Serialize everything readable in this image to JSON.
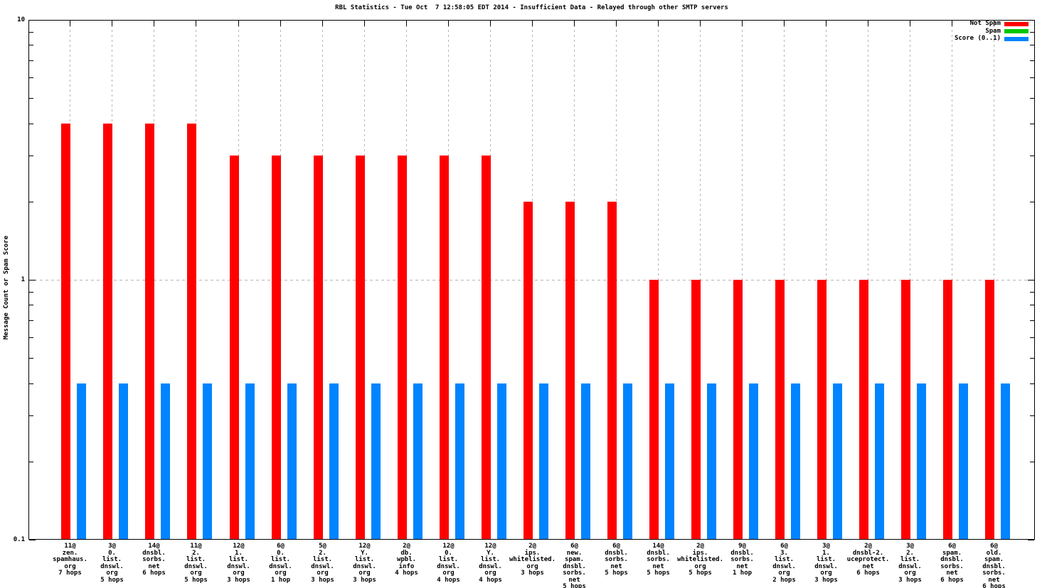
{
  "chart_data": {
    "type": "bar",
    "title": "RBL Statistics - Tue Oct  7 12:58:05 EDT 2014 - Insufficient Data - Relayed through other SMTP servers",
    "ylabel": "Message Count or Spam Score",
    "xlabel": "",
    "yscale": "log",
    "ylim": [
      0.1,
      10
    ],
    "y_tick_values": [
      10,
      1,
      0.1
    ],
    "y_tick_labels": [
      "10",
      "1",
      "0.1"
    ],
    "grid": true,
    "legend_position": "top-right-inside",
    "colors": {
      "grid": "#b4b4b4",
      "border": "#000000",
      "background": "#ffffff"
    },
    "categories": [
      "11@ zen.spamhaus.org 7 hops",
      "3@ 0.list.dnswl.org 5 hops",
      "14@ dnsbl.sorbs.net 6 hops",
      "11@ 2.list.dnswl.org 5 hops",
      "12@ 1.list.dnswl.org 3 hops",
      "6@ 0.list.dnswl.org 1 hop",
      "5@ 2.list.dnswl.org 3 hops",
      "12@ Y.list.dnswl.org 3 hops",
      "2@ db.wpbl.info 4 hops",
      "12@ 0.list.dnswl.org 4 hops",
      "12@ Y.list.dnswl.org 4 hops",
      "2@ ips.whitelisted.org 3 hops",
      "6@ new.spam.dnsbl.sorbs.net 5 hops",
      "6@ dnsbl.sorbs.net 5 hops",
      "14@ dnsbl.sorbs.net 5 hops",
      "2@ ips.whitelisted.org 5 hops",
      "9@ dnsbl.sorbs.net 1 hop",
      "6@ 3.list.dnswl.org 2 hops",
      "3@ 1.list.dnswl.org 3 hops",
      "2@ dnsbl-2.uceprotect.net 6 hops",
      "3@ 2.list.dnswl.org 3 hops",
      "6@ spam.dnsbl.sorbs.net 6 hops",
      "6@ old.spam.dnsbl.sorbs.net 6 hops"
    ],
    "category_label_lines": [
      [
        "11@",
        "zen.",
        "spamhaus.",
        "org",
        "7 hops"
      ],
      [
        "3@",
        "0.",
        "list.",
        "dnswl.",
        "org",
        "5 hops"
      ],
      [
        "14@",
        "dnsbl.",
        "sorbs.",
        "net",
        "6 hops"
      ],
      [
        "11@",
        "2.",
        "list.",
        "dnswl.",
        "org",
        "5 hops"
      ],
      [
        "12@",
        "1.",
        "list.",
        "dnswl.",
        "org",
        "3 hops"
      ],
      [
        "6@",
        "0.",
        "list.",
        "dnswl.",
        "org",
        "1 hop"
      ],
      [
        "5@",
        "2.",
        "list.",
        "dnswl.",
        "org",
        "3 hops"
      ],
      [
        "12@",
        "Y.",
        "list.",
        "dnswl.",
        "org",
        "3 hops"
      ],
      [
        "2@",
        "db.",
        "wpbl.",
        "info",
        "4 hops"
      ],
      [
        "12@",
        "0.",
        "list.",
        "dnswl.",
        "org",
        "4 hops"
      ],
      [
        "12@",
        "Y.",
        "list.",
        "dnswl.",
        "org",
        "4 hops"
      ],
      [
        "2@",
        "ips.",
        "whitelisted.",
        "org",
        "3 hops"
      ],
      [
        "6@",
        "new.",
        "spam.",
        "dnsbl.",
        "sorbs.",
        "net",
        "5 hops"
      ],
      [
        "6@",
        "dnsbl.",
        "sorbs.",
        "net",
        "5 hops"
      ],
      [
        "14@",
        "dnsbl.",
        "sorbs.",
        "net",
        "5 hops"
      ],
      [
        "2@",
        "ips.",
        "whitelisted.",
        "org",
        "5 hops"
      ],
      [
        "9@",
        "dnsbl.",
        "sorbs.",
        "net",
        "1 hop"
      ],
      [
        "6@",
        "3.",
        "list.",
        "dnswl.",
        "org",
        "2 hops"
      ],
      [
        "3@",
        "1.",
        "list.",
        "dnswl.",
        "org",
        "3 hops"
      ],
      [
        "2@",
        "dnsbl-2.",
        "uceprotect.",
        "net",
        "6 hops"
      ],
      [
        "3@",
        "2.",
        "list.",
        "dnswl.",
        "org",
        "3 hops"
      ],
      [
        "6@",
        "spam.",
        "dnsbl.",
        "sorbs.",
        "net",
        "6 hops"
      ],
      [
        "6@",
        "old.",
        "spam.",
        "dnsbl.",
        "sorbs.",
        "net",
        "6 hops"
      ]
    ],
    "series": [
      {
        "name": "Not Spam",
        "color": "#ff0000",
        "values": [
          4,
          4,
          4,
          4,
          3,
          3,
          3,
          3,
          3,
          3,
          3,
          2,
          2,
          2,
          1,
          1,
          1,
          1,
          1,
          1,
          1,
          1,
          1
        ]
      },
      {
        "name": "Spam",
        "color": "#00c800",
        "values": [
          0,
          0,
          0,
          0,
          0,
          0,
          0,
          0,
          0,
          0,
          0,
          0,
          0,
          0,
          0,
          0,
          0,
          0,
          0,
          0,
          0,
          0,
          0
        ]
      },
      {
        "name": "Score (0..1)",
        "color": "#0084ff",
        "values": [
          0.4,
          0.4,
          0.4,
          0.4,
          0.4,
          0.4,
          0.4,
          0.4,
          0.4,
          0.4,
          0.4,
          0.4,
          0.4,
          0.4,
          0.4,
          0.4,
          0.4,
          0.4,
          0.4,
          0.4,
          0.4,
          0.4,
          0.4
        ]
      }
    ]
  }
}
